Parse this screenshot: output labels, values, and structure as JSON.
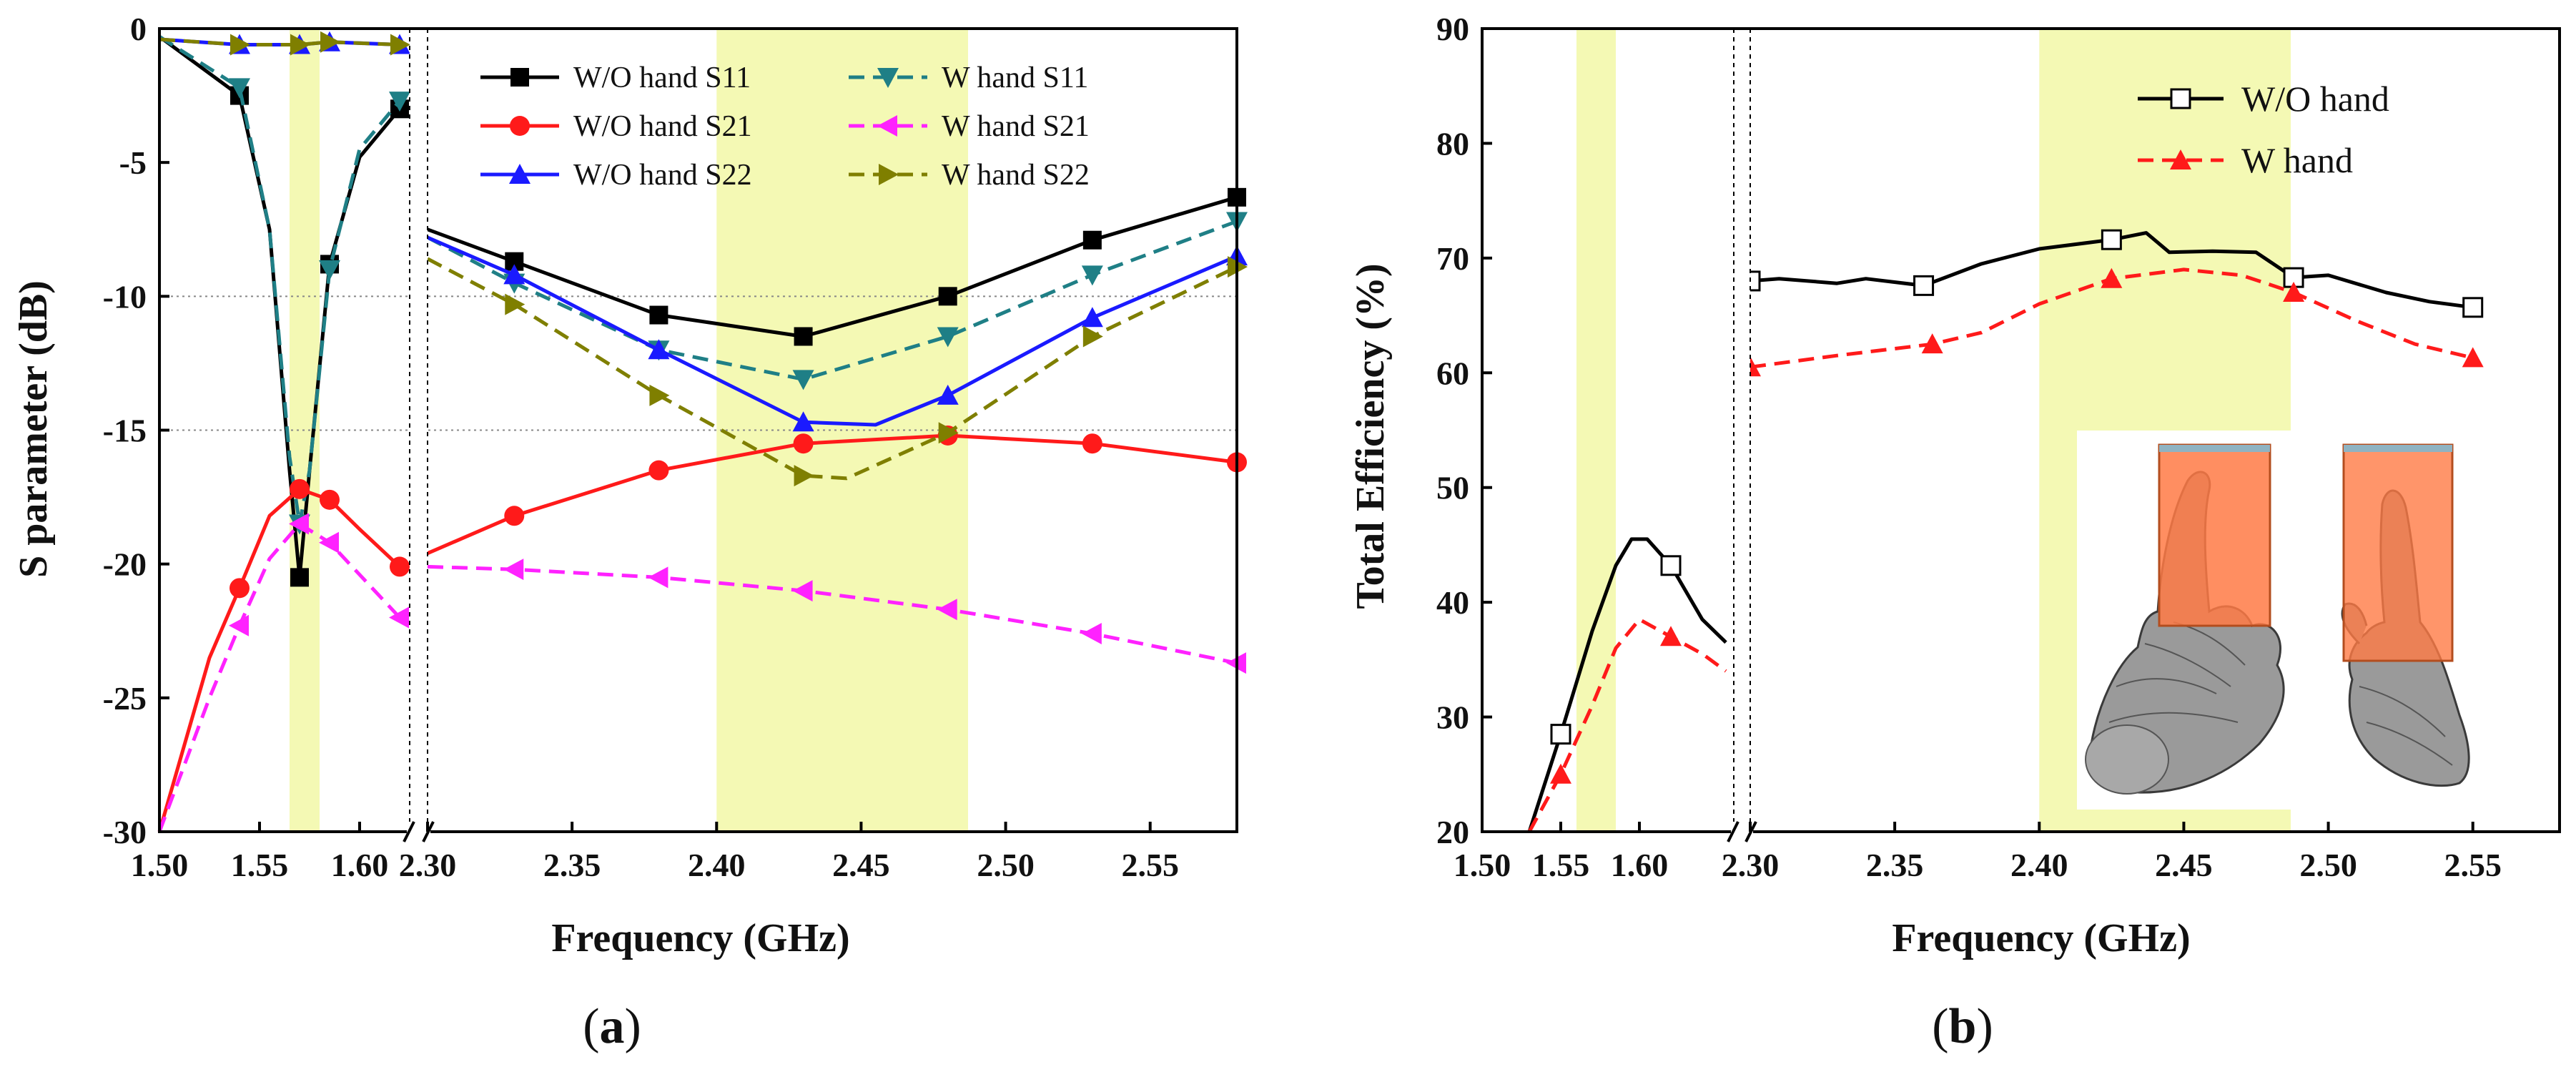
{
  "chart_data": [
    {
      "type": "line",
      "panel_label": "a",
      "xlabel": "Frequency (GHz)",
      "ylabel": "S parameter (dB)",
      "ylim": [
        -30,
        0
      ],
      "yticks": [
        "0",
        "-5",
        "-10",
        "-15",
        "-20",
        "-25",
        "-30"
      ],
      "xticks_low": [
        "1.50",
        "1.55",
        "1.60"
      ],
      "xticks_high": [
        "2.30",
        "2.35",
        "2.40",
        "2.45",
        "2.50",
        "2.55"
      ],
      "x_segments": [
        [
          1.5,
          1.625
        ],
        [
          2.3,
          2.58
        ]
      ],
      "axis_break": true,
      "highlight_bands": [
        [
          1.565,
          1.58
        ],
        [
          2.4,
          2.487
        ]
      ],
      "gridlines_y": [
        -10,
        -15
      ],
      "legend_position": "top-right",
      "series": [
        {
          "name": "W/O hand S11",
          "color": "#000000",
          "dash": "solid",
          "marker": "square",
          "x": [
            1.5,
            1.54,
            1.555,
            1.565,
            1.57,
            1.575,
            1.585,
            1.6,
            1.62,
            2.3,
            2.33,
            2.38,
            2.43,
            2.48,
            2.53,
            2.58
          ],
          "y": [
            -0.3,
            -2.5,
            -7.5,
            -16.5,
            -20.5,
            -16.5,
            -8.8,
            -4.8,
            -3.0,
            -7.5,
            -8.7,
            -10.7,
            -11.5,
            -10.0,
            -7.9,
            -6.3
          ]
        },
        {
          "name": "W hand S11",
          "color": "#1f7f86",
          "dash": "dashed",
          "marker": "triangle-down",
          "x": [
            1.5,
            1.54,
            1.555,
            1.565,
            1.57,
            1.575,
            1.585,
            1.6,
            1.62,
            2.3,
            2.33,
            2.38,
            2.43,
            2.48,
            2.53,
            2.58
          ],
          "y": [
            -0.3,
            -2.2,
            -7.5,
            -16.0,
            -18.5,
            -16.5,
            -9.0,
            -4.5,
            -2.7,
            -7.8,
            -9.5,
            -12.0,
            -13.1,
            -11.5,
            -9.2,
            -7.2
          ]
        },
        {
          "name": "W/O hand S21",
          "color": "#ff1a1a",
          "dash": "solid",
          "marker": "circle",
          "x": [
            1.5,
            1.525,
            1.54,
            1.555,
            1.57,
            1.585,
            1.6,
            1.62,
            2.3,
            2.33,
            2.38,
            2.43,
            2.48,
            2.53,
            2.58
          ],
          "y": [
            -30.0,
            -23.5,
            -20.9,
            -18.2,
            -17.2,
            -17.6,
            -18.7,
            -20.1,
            -19.6,
            -18.2,
            -16.5,
            -15.5,
            -15.2,
            -15.5,
            -16.2
          ]
        },
        {
          "name": "W hand S21",
          "color": "#ff22ff",
          "dash": "dashed",
          "marker": "triangle-left",
          "x": [
            1.5,
            1.525,
            1.54,
            1.555,
            1.57,
            1.585,
            1.6,
            1.62,
            2.3,
            2.33,
            2.38,
            2.43,
            2.48,
            2.53,
            2.58
          ],
          "y": [
            -30.0,
            -25.0,
            -22.3,
            -19.8,
            -18.5,
            -19.2,
            -20.4,
            -22.0,
            -20.1,
            -20.2,
            -20.5,
            -21.0,
            -21.7,
            -22.6,
            -23.7
          ]
        },
        {
          "name": "W/O hand S22",
          "color": "#1a1aff",
          "dash": "solid",
          "marker": "triangle-up",
          "x": [
            1.5,
            1.54,
            1.57,
            1.585,
            1.62,
            2.3,
            2.33,
            2.38,
            2.43,
            2.455,
            2.48,
            2.53,
            2.58
          ],
          "y": [
            -0.4,
            -0.6,
            -0.6,
            -0.5,
            -0.6,
            -7.8,
            -9.2,
            -12.0,
            -14.7,
            -14.8,
            -13.7,
            -10.8,
            -8.5
          ]
        },
        {
          "name": "W hand S22",
          "color": "#7f7f00",
          "dash": "dashed",
          "marker": "triangle-right",
          "x": [
            1.5,
            1.54,
            1.57,
            1.585,
            1.62,
            2.3,
            2.33,
            2.38,
            2.43,
            2.445,
            2.48,
            2.53,
            2.58
          ],
          "y": [
            -0.4,
            -0.6,
            -0.6,
            -0.5,
            -0.6,
            -8.6,
            -10.3,
            -13.7,
            -16.7,
            -16.8,
            -15.1,
            -11.5,
            -8.9
          ]
        }
      ]
    },
    {
      "type": "line",
      "panel_label": "b",
      "xlabel": "Frequency (GHz)",
      "ylabel": "Total Efficiency (%)",
      "ylim": [
        20,
        90
      ],
      "yticks": [
        "90",
        "80",
        "70",
        "60",
        "50",
        "40",
        "30",
        "20"
      ],
      "xticks_low": [
        "1.50",
        "1.55",
        "1.60"
      ],
      "xticks_high": [
        "2.30",
        "2.35",
        "2.40",
        "2.45",
        "2.50",
        "2.55"
      ],
      "x_segments": [
        [
          1.5,
          1.66
        ],
        [
          2.3,
          2.58
        ]
      ],
      "axis_break": true,
      "highlight_bands": [
        [
          1.56,
          1.585
        ],
        [
          2.4,
          2.487
        ]
      ],
      "legend_position": "top-right",
      "legend_labels": [
        "W/O hand",
        "W     hand"
      ],
      "series": [
        {
          "name": "W/O hand",
          "color": "#000000",
          "dash": "solid",
          "marker": "square-open",
          "x": [
            1.53,
            1.55,
            1.57,
            1.585,
            1.595,
            1.605,
            1.62,
            1.64,
            1.655,
            2.3,
            2.31,
            2.33,
            2.34,
            2.36,
            2.38,
            2.4,
            2.425,
            2.437,
            2.445,
            2.46,
            2.475,
            2.488,
            2.5,
            2.52,
            2.535,
            2.55
          ],
          "y": [
            19.0,
            28.5,
            37.5,
            43.2,
            45.5,
            45.5,
            43.2,
            38.5,
            36.5,
            68.0,
            68.2,
            67.8,
            68.2,
            67.6,
            69.5,
            70.8,
            71.6,
            72.2,
            70.5,
            70.6,
            70.5,
            68.3,
            68.5,
            67.0,
            66.2,
            65.7
          ]
        },
        {
          "name": "W hand",
          "color": "#ff1a1a",
          "dash": "dashed",
          "marker": "triangle-up",
          "x": [
            1.53,
            1.55,
            1.57,
            1.585,
            1.6,
            1.62,
            1.64,
            1.655,
            2.3,
            2.33,
            2.363,
            2.38,
            2.4,
            2.425,
            2.45,
            2.47,
            2.488,
            2.51,
            2.53,
            2.55
          ],
          "y": [
            19.0,
            25.0,
            31.0,
            36.0,
            38.5,
            37.0,
            35.5,
            34.0,
            60.5,
            61.5,
            62.5,
            63.5,
            66.0,
            68.2,
            69.0,
            68.5,
            67.0,
            64.5,
            62.5,
            61.3
          ]
        }
      ]
    }
  ]
}
